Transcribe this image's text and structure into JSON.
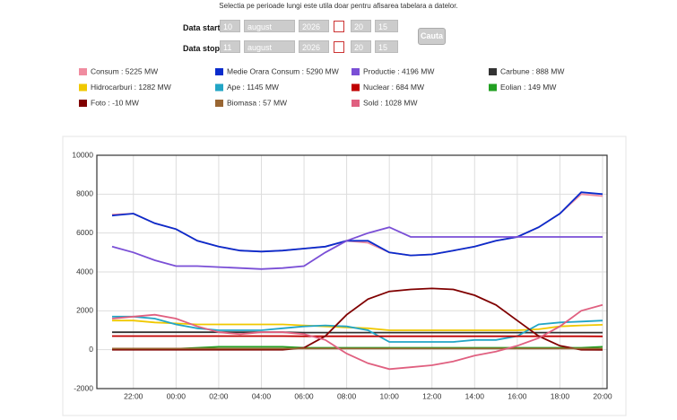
{
  "header": {
    "note": "Selectia pe perioade lungi este utila doar pentru afisarea tabelara a datelor."
  },
  "form": {
    "start_label": "Data start",
    "stop_label": "Data stop",
    "start": [
      "10",
      "august",
      "2026",
      "20",
      "15"
    ],
    "stop": [
      "11",
      "august",
      "2026",
      "20",
      "15"
    ],
    "button": "Cauta"
  },
  "chart_data": {
    "type": "line",
    "categories": [
      null,
      "22:00",
      null,
      "00:00",
      null,
      "02:00",
      null,
      "04:00",
      null,
      "06:00",
      null,
      "08:00",
      null,
      "10:00",
      null,
      "12:00",
      null,
      "14:00",
      null,
      "16:00",
      null,
      "18:00",
      null,
      "20:00"
    ],
    "ylim": [
      -2000,
      10000
    ],
    "yticks": [
      -2000,
      0,
      2000,
      4000,
      6000,
      8000,
      10000
    ],
    "grid": true,
    "series": [
      {
        "name": "Consum : 5225 MW",
        "color": "#f08ca0",
        "values": [
          6950,
          7000,
          6500,
          6200,
          5600,
          5300,
          5100,
          5050,
          5100,
          5200,
          5300,
          5600,
          5500,
          5000,
          4850,
          4900,
          5100,
          5300,
          5600,
          5800,
          6300,
          7000,
          8000,
          7900
        ]
      },
      {
        "name": "Medie Orara Consum : 5290 MW",
        "color": "#0a2ccc",
        "values": [
          6900,
          7000,
          6500,
          6200,
          5600,
          5300,
          5100,
          5050,
          5100,
          5200,
          5300,
          5600,
          5600,
          5000,
          4850,
          4900,
          5100,
          5300,
          5600,
          5800,
          6300,
          7000,
          8100,
          8000
        ]
      },
      {
        "name": "Productie : 4196 MW",
        "color": "#7a4fd6",
        "values": [
          5300,
          5000,
          4600,
          4300,
          4300,
          4250,
          4200,
          4150,
          4200,
          4300,
          5000,
          5600,
          6000,
          6300,
          5800,
          5800,
          5800,
          5800,
          5800,
          5800,
          5800,
          5800,
          5800,
          5800
        ]
      },
      {
        "name": "Carbune : 888 MW",
        "color": "#333333",
        "values": [
          900,
          900,
          900,
          900,
          900,
          900,
          900,
          900,
          900,
          880,
          880,
          880,
          880,
          880,
          880,
          880,
          880,
          880,
          880,
          880,
          880,
          880,
          880,
          880
        ]
      },
      {
        "name": "Hidrocarburi : 1282 MW",
        "color": "#f0c800",
        "values": [
          1500,
          1500,
          1400,
          1350,
          1300,
          1300,
          1300,
          1300,
          1300,
          1250,
          1200,
          1150,
          1100,
          1000,
          1000,
          1000,
          1000,
          1000,
          1000,
          1000,
          1050,
          1200,
          1250,
          1280
        ]
      },
      {
        "name": "Ape : 1145 MW",
        "color": "#22a5c5",
        "values": [
          1700,
          1700,
          1600,
          1300,
          1100,
          1000,
          1000,
          1000,
          1100,
          1200,
          1250,
          1200,
          1000,
          400,
          400,
          400,
          400,
          500,
          500,
          700,
          1300,
          1400,
          1450,
          1500
        ]
      },
      {
        "name": "Nuclear : 684 MW",
        "color": "#c00000",
        "values": [
          700,
          700,
          700,
          700,
          700,
          700,
          700,
          700,
          700,
          690,
          690,
          690,
          690,
          690,
          690,
          690,
          690,
          690,
          690,
          690,
          690,
          690,
          690,
          684
        ]
      },
      {
        "name": "Eolian : 149 MW",
        "color": "#22a022",
        "values": [
          50,
          50,
          50,
          50,
          100,
          150,
          150,
          150,
          150,
          100,
          100,
          100,
          100,
          100,
          100,
          100,
          100,
          100,
          100,
          100,
          100,
          100,
          100,
          150
        ]
      },
      {
        "name": "Foto : -10 MW",
        "color": "#800000",
        "values": [
          0,
          0,
          0,
          0,
          0,
          0,
          0,
          0,
          0,
          100,
          700,
          1800,
          2600,
          3000,
          3100,
          3150,
          3100,
          2800,
          2300,
          1500,
          700,
          200,
          0,
          -10
        ]
      },
      {
        "name": "Biomasa : 57 MW",
        "color": "#996633",
        "values": [
          60,
          60,
          60,
          60,
          60,
          60,
          60,
          60,
          60,
          60,
          60,
          60,
          60,
          60,
          60,
          60,
          60,
          60,
          60,
          60,
          60,
          60,
          60,
          57
        ]
      },
      {
        "name": "Sold : 1028 MW",
        "color": "#e06080",
        "values": [
          1600,
          1700,
          1800,
          1600,
          1200,
          900,
          800,
          900,
          900,
          800,
          500,
          -200,
          -700,
          -1000,
          -900,
          -800,
          -600,
          -300,
          -100,
          200,
          600,
          1200,
          2000,
          2300
        ]
      }
    ]
  }
}
